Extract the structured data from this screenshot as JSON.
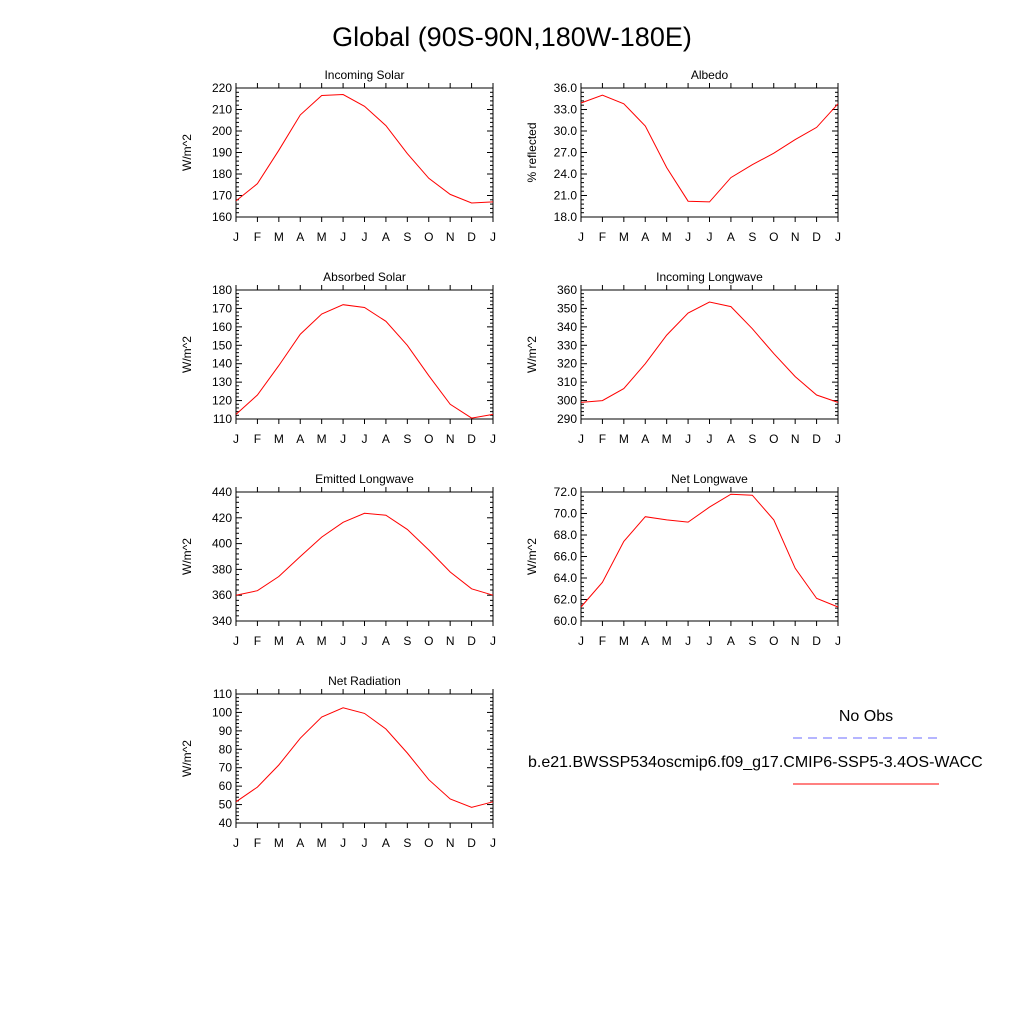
{
  "page": {
    "title": "Global (90S-90N,180W-180E)"
  },
  "legend": {
    "obs_label": "No Obs",
    "obs_color": "#6b6bff",
    "model_label": "b.e21.BWSSP534oscmip6.f09_g17.CMIP6-SSP5-3.4OS-WACC",
    "model_color": "#ff0000"
  },
  "chart_data": [
    {
      "type": "line",
      "title": "Incoming Solar",
      "ylabel": "W/m^2",
      "categories": [
        "J",
        "F",
        "M",
        "A",
        "M",
        "J",
        "J",
        "A",
        "S",
        "O",
        "N",
        "D",
        "J"
      ],
      "ylim": [
        160,
        220
      ],
      "yticks": [
        "160",
        "170",
        "180",
        "190",
        "200",
        "210",
        "220"
      ],
      "series": [
        {
          "values": [
            167.5,
            175.5,
            191,
            207.5,
            216.5,
            217,
            211.5,
            202.5,
            189.5,
            178,
            170.5,
            166.5,
            167
          ]
        }
      ]
    },
    {
      "type": "line",
      "title": "Albedo",
      "ylabel": "% reflected",
      "categories": [
        "J",
        "F",
        "M",
        "A",
        "M",
        "J",
        "J",
        "A",
        "S",
        "O",
        "N",
        "D",
        "J"
      ],
      "ylim": [
        18,
        36
      ],
      "yticks": [
        "18.0",
        "21.0",
        "24.0",
        "27.0",
        "30.0",
        "33.0",
        "36.0"
      ],
      "series": [
        {
          "values": [
            33.9,
            35.0,
            33.8,
            30.7,
            24.9,
            20.2,
            20.1,
            23.5,
            25.3,
            26.9,
            28.8,
            30.5,
            33.8
          ]
        }
      ]
    },
    {
      "type": "line",
      "title": "Absorbed Solar",
      "ylabel": "W/m^2",
      "categories": [
        "J",
        "F",
        "M",
        "A",
        "M",
        "J",
        "J",
        "A",
        "S",
        "O",
        "N",
        "D",
        "J"
      ],
      "ylim": [
        110,
        180
      ],
      "yticks": [
        "110",
        "120",
        "130",
        "140",
        "150",
        "160",
        "170",
        "180"
      ],
      "series": [
        {
          "values": [
            112.5,
            123,
            139,
            156,
            167,
            172,
            170.5,
            163,
            150,
            133.5,
            118,
            110.5,
            112.5
          ]
        }
      ]
    },
    {
      "type": "line",
      "title": "Incoming Longwave",
      "ylabel": "W/m^2",
      "categories": [
        "J",
        "F",
        "M",
        "A",
        "M",
        "J",
        "J",
        "A",
        "S",
        "O",
        "N",
        "D",
        "J"
      ],
      "ylim": [
        290,
        360
      ],
      "yticks": [
        "290",
        "300",
        "310",
        "320",
        "330",
        "340",
        "350",
        "360"
      ],
      "series": [
        {
          "values": [
            299,
            300,
            306.5,
            320,
            335.5,
            347.5,
            353.5,
            351,
            339,
            325.5,
            313,
            303,
            299
          ]
        }
      ]
    },
    {
      "type": "line",
      "title": "Emitted Longwave",
      "ylabel": "W/m^2",
      "categories": [
        "J",
        "F",
        "M",
        "A",
        "M",
        "J",
        "J",
        "A",
        "S",
        "O",
        "N",
        "D",
        "J"
      ],
      "ylim": [
        340,
        440
      ],
      "yticks": [
        "340",
        "360",
        "380",
        "400",
        "420",
        "440"
      ],
      "series": [
        {
          "values": [
            360,
            363.5,
            374.5,
            390,
            405,
            416.5,
            423.5,
            422,
            411,
            395,
            378,
            365,
            360
          ]
        }
      ]
    },
    {
      "type": "line",
      "title": "Net Longwave",
      "ylabel": "W/m^2",
      "categories": [
        "J",
        "F",
        "M",
        "A",
        "M",
        "J",
        "J",
        "A",
        "S",
        "O",
        "N",
        "D",
        "J"
      ],
      "ylim": [
        60,
        72
      ],
      "yticks": [
        "60.0",
        "62.0",
        "64.0",
        "66.0",
        "68.0",
        "70.0",
        "72.0"
      ],
      "series": [
        {
          "values": [
            61.3,
            63.6,
            67.4,
            69.7,
            69.4,
            69.2,
            70.6,
            71.8,
            71.7,
            69.4,
            64.9,
            62.1,
            61.3
          ]
        }
      ]
    },
    {
      "type": "line",
      "title": "Net Radiation",
      "ylabel": "W/m^2",
      "categories": [
        "J",
        "F",
        "M",
        "A",
        "M",
        "J",
        "J",
        "A",
        "S",
        "O",
        "N",
        "D",
        "J"
      ],
      "ylim": [
        40,
        110
      ],
      "yticks": [
        "40",
        "50",
        "60",
        "70",
        "80",
        "90",
        "100",
        "110"
      ],
      "series": [
        {
          "values": [
            51.5,
            59.5,
            71.5,
            86,
            97.5,
            102.5,
            99.5,
            91,
            78,
            63.5,
            53,
            48.5,
            51.5
          ]
        }
      ]
    }
  ]
}
